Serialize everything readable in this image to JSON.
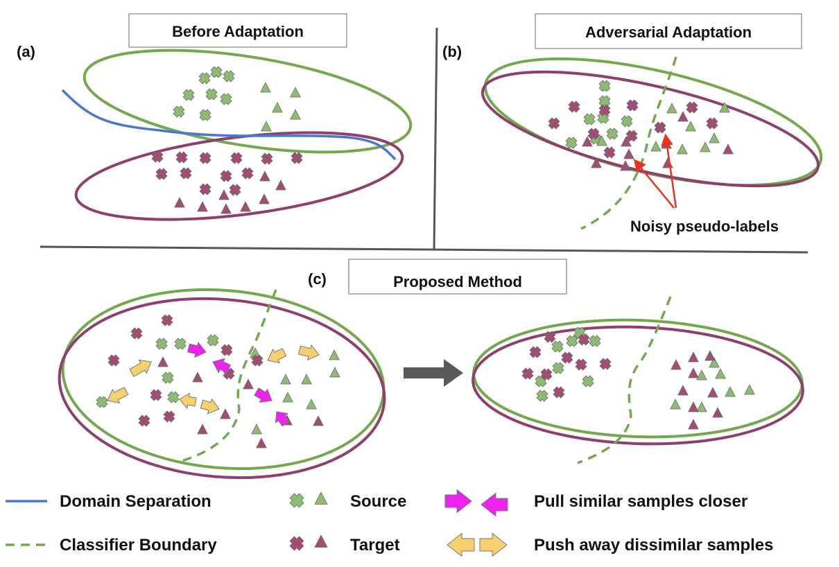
{
  "panels": {
    "a": {
      "label": "(a)",
      "title": "Before Adaptation"
    },
    "b": {
      "label": "(b)",
      "title": "Adversarial Adaptation",
      "annotation": "Noisy pseudo-labels"
    },
    "c": {
      "label": "(c)",
      "title": "Proposed Method"
    }
  },
  "legend": {
    "domain_separation": "Domain Separation",
    "classifier_boundary": "Classifier Boundary",
    "source": "Source",
    "target": "Target",
    "pull": "Pull similar samples closer",
    "push": "Push away dissimilar samples"
  },
  "colors": {
    "source": "#8dbb72",
    "target": "#a24e74",
    "source_ellipse": "#74a84e",
    "target_ellipse": "#8e3f6b",
    "domain_line": "#4a78d0",
    "pull_arrow": "#ee22ee",
    "push_arrow": "#f6d06e",
    "noisy_arrow": "#e8341c",
    "transition_arrow": "#595959"
  }
}
